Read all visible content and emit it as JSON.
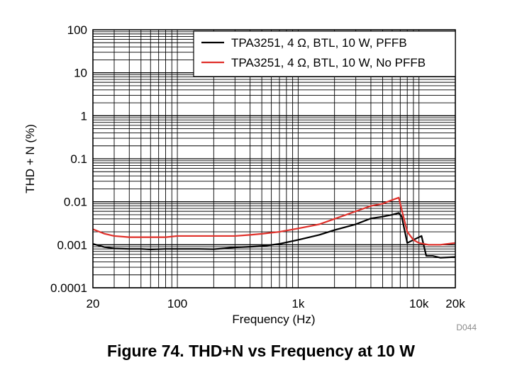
{
  "chart_data": {
    "type": "line",
    "title": "",
    "xlabel": "Frequency (Hz)",
    "ylabel": "THD + N (%)",
    "xscale": "log",
    "yscale": "log",
    "xlim": [
      20,
      20000
    ],
    "ylim": [
      0.0001,
      100
    ],
    "grid": true,
    "legend_position": "top-right",
    "x_tick_labels": [
      {
        "value": 20,
        "label": "20"
      },
      {
        "value": 100,
        "label": "100"
      },
      {
        "value": 1000,
        "label": "1k"
      },
      {
        "value": 10000,
        "label": "10k"
      },
      {
        "value": 20000,
        "label": "20k"
      }
    ],
    "y_tick_labels": [
      {
        "value": 100,
        "label": "100"
      },
      {
        "value": 10,
        "label": "10"
      },
      {
        "value": 1,
        "label": "1"
      },
      {
        "value": 0.1,
        "label": "0.1"
      },
      {
        "value": 0.01,
        "label": "0.01"
      },
      {
        "value": 0.001,
        "label": "0.001"
      },
      {
        "value": 0.0001,
        "label": "0.0001"
      }
    ],
    "series": [
      {
        "name": "TPA3251, 4 Ω, BTL, 10 W, PFFB",
        "color": "#000000",
        "points": [
          [
            20,
            0.00105
          ],
          [
            25,
            0.00088
          ],
          [
            30,
            0.00082
          ],
          [
            40,
            0.0008
          ],
          [
            50,
            0.0008
          ],
          [
            60,
            0.00078
          ],
          [
            80,
            0.0008
          ],
          [
            100,
            0.0008
          ],
          [
            150,
            0.0008
          ],
          [
            200,
            0.00079
          ],
          [
            250,
            0.00083
          ],
          [
            300,
            0.00087
          ],
          [
            400,
            0.0009
          ],
          [
            500,
            0.00093
          ],
          [
            700,
            0.00105
          ],
          [
            1000,
            0.0013
          ],
          [
            1500,
            0.0017
          ],
          [
            2000,
            0.0022
          ],
          [
            3000,
            0.003
          ],
          [
            4000,
            0.0041
          ],
          [
            5000,
            0.0045
          ],
          [
            6000,
            0.005
          ],
          [
            6800,
            0.0055
          ],
          [
            7200,
            0.0045
          ],
          [
            8000,
            0.0011
          ],
          [
            9000,
            0.0013
          ],
          [
            10000,
            0.0015
          ],
          [
            10500,
            0.0016
          ],
          [
            11500,
            0.00055
          ],
          [
            13000,
            0.00055
          ],
          [
            15000,
            0.0005
          ],
          [
            20000,
            0.00052
          ]
        ]
      },
      {
        "name": "TPA3251, 4 Ω, BTL, 10 W, No PFFB",
        "color": "#e0302a",
        "points": [
          [
            20,
            0.0023
          ],
          [
            25,
            0.0018
          ],
          [
            30,
            0.0016
          ],
          [
            40,
            0.0015
          ],
          [
            60,
            0.0015
          ],
          [
            80,
            0.0015
          ],
          [
            100,
            0.0016
          ],
          [
            150,
            0.0016
          ],
          [
            200,
            0.0016
          ],
          [
            300,
            0.0016
          ],
          [
            400,
            0.0017
          ],
          [
            500,
            0.0018
          ],
          [
            700,
            0.002
          ],
          [
            1000,
            0.0024
          ],
          [
            1500,
            0.003
          ],
          [
            2000,
            0.004
          ],
          [
            3000,
            0.006
          ],
          [
            4000,
            0.008
          ],
          [
            5000,
            0.009
          ],
          [
            6000,
            0.011
          ],
          [
            6800,
            0.0125
          ],
          [
            7200,
            0.0065
          ],
          [
            8000,
            0.002
          ],
          [
            9000,
            0.0013
          ],
          [
            10000,
            0.0011
          ],
          [
            12000,
            0.001
          ],
          [
            15000,
            0.001
          ],
          [
            20000,
            0.0011
          ]
        ]
      }
    ]
  },
  "code_label": "D044",
  "caption": "Figure 74. THD+N vs Frequency at 10 W"
}
